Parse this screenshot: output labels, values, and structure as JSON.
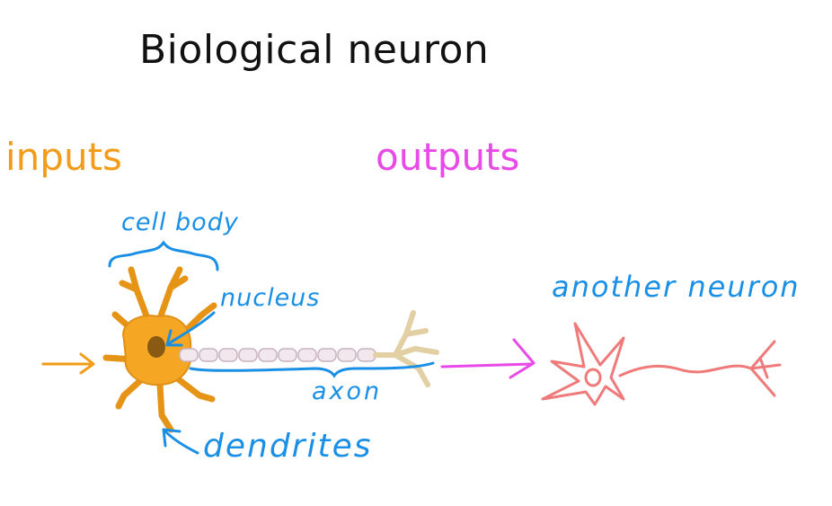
{
  "title": "Biological neuron",
  "labels": {
    "inputs": "inputs",
    "outputs": "outputs"
  },
  "annotations": {
    "cell_body": "cell body",
    "nucleus": "nucleus",
    "axon": "axon",
    "dendrites": "dendrites",
    "another_neuron": "another neuron"
  },
  "colors": {
    "inputs": "#f39c1a",
    "outputs": "#e84ae8",
    "annotation": "#1a8fe6",
    "neuron_body": "#f5a623",
    "axon_segment": "#f3e7ee",
    "axon_terminal": "#eadbb8",
    "sketch_neuron": "#f07a7a"
  }
}
